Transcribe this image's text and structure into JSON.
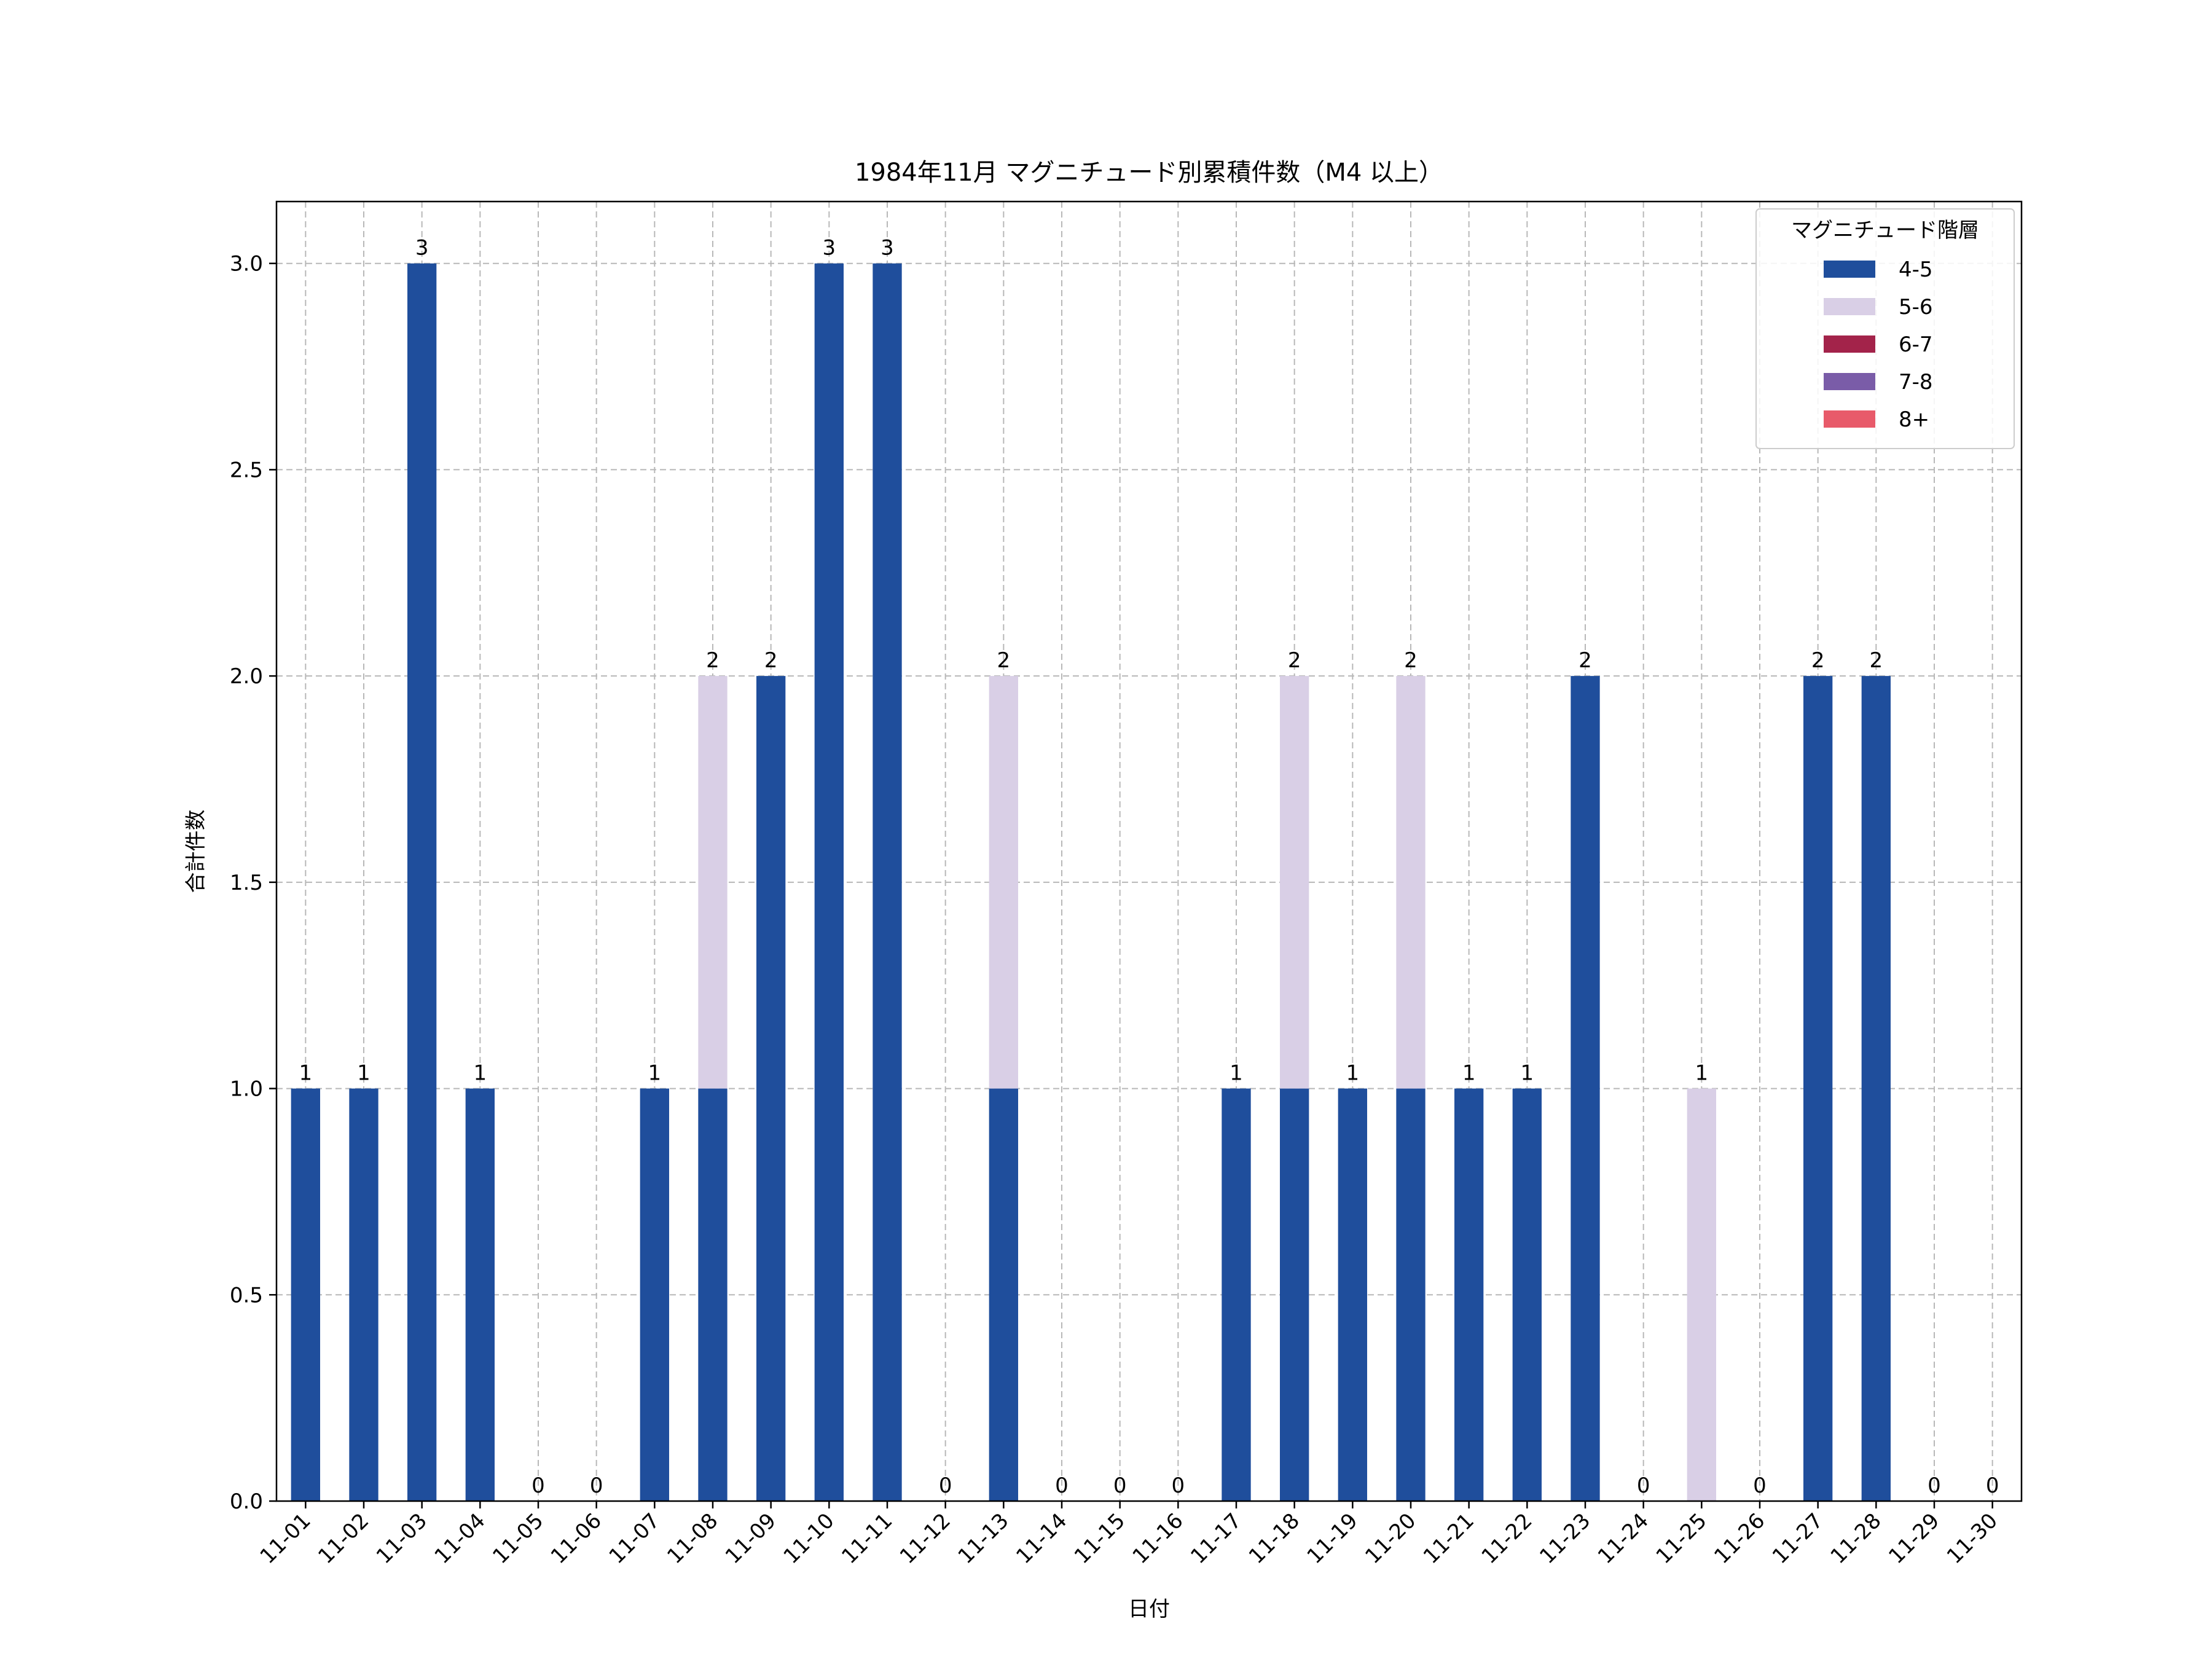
{
  "chart_data": {
    "type": "bar",
    "stacked": true,
    "title": "1984年11月 マグニチュード別累積件数（M4 以上）",
    "xlabel": "日付",
    "ylabel": "合計件数",
    "ylim": [
      0,
      3.15
    ],
    "yticks": [
      0.0,
      0.5,
      1.0,
      1.5,
      2.0,
      2.5,
      3.0
    ],
    "ytick_labels": [
      "0.0",
      "0.5",
      "1.0",
      "1.5",
      "2.0",
      "2.5",
      "3.0"
    ],
    "grid": true,
    "legend_title": "マグニチュード階層",
    "legend_position": "top-right",
    "categories": [
      "11-01",
      "11-02",
      "11-03",
      "11-04",
      "11-05",
      "11-06",
      "11-07",
      "11-08",
      "11-09",
      "11-10",
      "11-11",
      "11-12",
      "11-13",
      "11-14",
      "11-15",
      "11-16",
      "11-17",
      "11-18",
      "11-19",
      "11-20",
      "11-21",
      "11-22",
      "11-23",
      "11-24",
      "11-25",
      "11-26",
      "11-27",
      "11-28",
      "11-29",
      "11-30"
    ],
    "series": [
      {
        "name": "4-5",
        "color": "#1f4e9c",
        "values": [
          1,
          1,
          3,
          1,
          0,
          0,
          1,
          1,
          2,
          3,
          3,
          0,
          1,
          0,
          0,
          0,
          1,
          1,
          1,
          1,
          1,
          1,
          2,
          0,
          0,
          0,
          2,
          2,
          0,
          0
        ]
      },
      {
        "name": "5-6",
        "color": "#d9cfe6",
        "values": [
          0,
          0,
          0,
          0,
          0,
          0,
          0,
          1,
          0,
          0,
          0,
          0,
          1,
          0,
          0,
          0,
          0,
          1,
          0,
          1,
          0,
          0,
          0,
          0,
          1,
          0,
          0,
          0,
          0,
          0
        ]
      },
      {
        "name": "6-7",
        "color": "#a3234a",
        "values": [
          0,
          0,
          0,
          0,
          0,
          0,
          0,
          0,
          0,
          0,
          0,
          0,
          0,
          0,
          0,
          0,
          0,
          0,
          0,
          0,
          0,
          0,
          0,
          0,
          0,
          0,
          0,
          0,
          0,
          0
        ]
      },
      {
        "name": "7-8",
        "color": "#7a5ca8",
        "values": [
          0,
          0,
          0,
          0,
          0,
          0,
          0,
          0,
          0,
          0,
          0,
          0,
          0,
          0,
          0,
          0,
          0,
          0,
          0,
          0,
          0,
          0,
          0,
          0,
          0,
          0,
          0,
          0,
          0,
          0
        ]
      },
      {
        "name": "8+",
        "color": "#e85a6a",
        "values": [
          0,
          0,
          0,
          0,
          0,
          0,
          0,
          0,
          0,
          0,
          0,
          0,
          0,
          0,
          0,
          0,
          0,
          0,
          0,
          0,
          0,
          0,
          0,
          0,
          0,
          0,
          0,
          0,
          0,
          0
        ]
      }
    ],
    "totals": [
      1,
      1,
      3,
      1,
      0,
      0,
      1,
      2,
      2,
      3,
      3,
      0,
      2,
      0,
      0,
      0,
      1,
      2,
      1,
      2,
      1,
      1,
      2,
      0,
      1,
      0,
      2,
      2,
      0,
      0
    ]
  }
}
